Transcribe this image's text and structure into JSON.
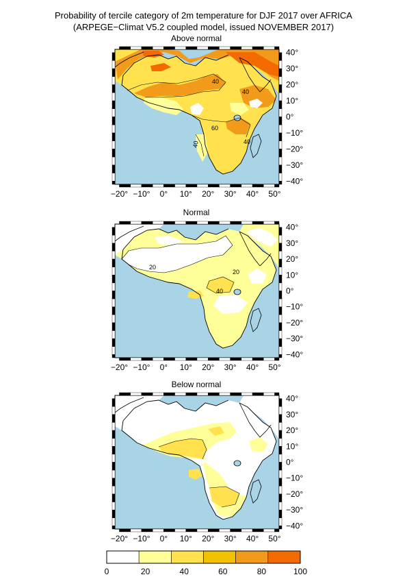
{
  "title": "Probability of tercile category of 2m temperature for DJF 2017 over AFRICA",
  "subtitle": "(ARPEGE−Climat V5.2 coupled model, issued NOVEMBER  2017)",
  "panels": [
    {
      "title": "Above normal",
      "contour_labels": [
        "40",
        "40",
        "60",
        "40",
        "40"
      ]
    },
    {
      "title": "Normal",
      "contour_labels": [
        "20",
        "20",
        "40"
      ]
    },
    {
      "title": "Below normal",
      "contour_labels": []
    }
  ],
  "axes": {
    "lon_labels": [
      "−20°",
      "−10°",
      "0°",
      "10°",
      "20°",
      "30°",
      "40°",
      "50°"
    ],
    "lat_labels": [
      "40°",
      "30°",
      "20°",
      "10°",
      "0°",
      "−10°",
      "−20°",
      "−30°",
      "−40°"
    ],
    "lon_values": [
      -20,
      -10,
      0,
      10,
      20,
      30,
      40,
      50
    ],
    "lat_values": [
      40,
      30,
      20,
      10,
      0,
      -10,
      -20,
      -30,
      -40
    ]
  },
  "colorbar": {
    "ticks": [
      "0",
      "20",
      "40",
      "60",
      "80",
      "100"
    ],
    "colors": [
      "#ffffff",
      "#ffff99",
      "#ffe24d",
      "#f2c200",
      "#f29a1a",
      "#f26a00"
    ]
  },
  "colors": {
    "ocean": "#a8d4e6",
    "land": "#ffffff",
    "coast": "#000000"
  }
}
